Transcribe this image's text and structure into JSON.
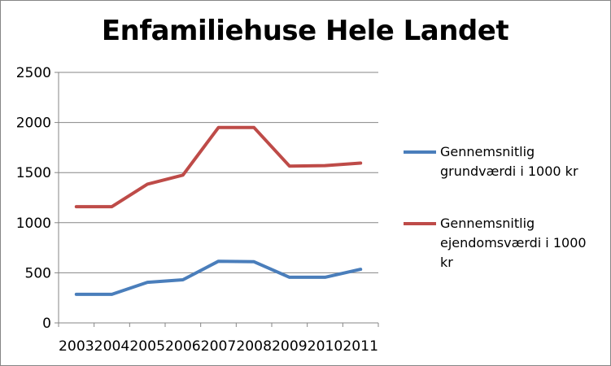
{
  "chart_data": {
    "type": "line",
    "title": "Enfamiliehuse Hele Landet",
    "categories": [
      "2003",
      "2004",
      "2005",
      "2006",
      "2007",
      "2008",
      "2009",
      "2010",
      "2011"
    ],
    "series": [
      {
        "name": "Gennemsnitlig grundværdi i 1000 kr",
        "color": "#4a7ebb",
        "values": [
          285,
          285,
          405,
          430,
          615,
          610,
          455,
          455,
          535
        ]
      },
      {
        "name": "Gennemsnitlig ejendomsværdi i 1000 kr",
        "color": "#be4b48",
        "values": [
          1160,
          1160,
          1385,
          1475,
          1950,
          1950,
          1565,
          1570,
          1595
        ]
      }
    ],
    "yticks": [
      "0",
      "500",
      "1000",
      "1500",
      "2000",
      "2500"
    ],
    "ylim": [
      0,
      2500
    ],
    "grid": true,
    "legend_position": "right"
  }
}
